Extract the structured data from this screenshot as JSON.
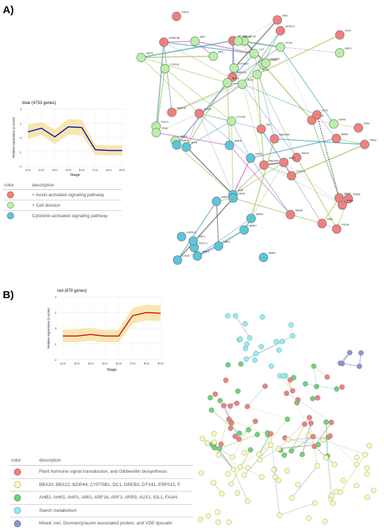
{
  "panels": [
    {
      "label": "A)",
      "chart_title": "blue (4733 genes)",
      "legend": {
        "headers": [
          "color",
          "description"
        ],
        "items": [
          {
            "color": "#ef8080",
            "text": "+ Auxin-activated signaling pathway"
          },
          {
            "color": "#b9f0a8",
            "text": "+ Cell division"
          },
          {
            "color": "#5bc6d8",
            "text": "Cytokinin-activated signaling pathway"
          }
        ]
      }
    },
    {
      "label": "B)",
      "chart_title": "red (878 genes)",
      "legend": {
        "headers": [
          "color",
          "description"
        ],
        "items": [
          {
            "color": "#ef8080",
            "text": "Plant hormone signal transduction, and Gibberellin biosynthesis"
          },
          {
            "color": "#fbfbb4",
            "text": "BBX20, BBX22, BZIP44, CYP75B1, DC1, DREB3, DTX41, ERF015, F"
          },
          {
            "color": "#6fd27a",
            "text": "AHB2, AHK5, AHP1, AMI1, ARF16, ARF3, ARR9, AUX1, EIL1, FAAH,"
          },
          {
            "color": "#8ef0f0",
            "text": "Starch metabolism"
          },
          {
            "color": "#8f94d6",
            "text": "Mixed, incl. Dormancy/auxin associated protein, and VDE lipocalin"
          }
        ]
      }
    }
  ],
  "chart_data": [
    {
      "type": "line",
      "title": "blue (4733 genes)",
      "xlabel": "Stage",
      "ylabel": "Relative expression (z-score)",
      "categories": [
        "1cm",
        "2cm",
        "3cm",
        "4cm",
        "5cm",
        "7cm",
        "8cm",
        "9cm"
      ],
      "series": [
        {
          "values": [
            0.4,
            0.65,
            0.05,
            0.75,
            0.7,
            -0.85,
            -0.9,
            -0.9
          ]
        }
      ],
      "band_upper": [
        0.9,
        1.1,
        0.55,
        1.3,
        1.25,
        -0.5,
        -0.55,
        -0.55
      ],
      "band_lower": [
        -0.1,
        0.2,
        -0.45,
        0.2,
        0.15,
        -1.2,
        -1.25,
        -1.25
      ],
      "ylim": [
        -2,
        2
      ],
      "yticks": [
        -2,
        -1,
        0,
        1,
        2
      ],
      "line_color": "#0b0bb0",
      "band_color": "#f6e2a3"
    },
    {
      "type": "line",
      "title": "red (878 genes)",
      "xlabel": "Stage",
      "ylabel": "Relative expression (z-score)",
      "categories": [
        "1cm",
        "2cm",
        "3cm",
        "4cm",
        "5cm",
        "7cm",
        "8cm",
        "9cm"
      ],
      "series": [
        {
          "values": [
            -0.5,
            -0.5,
            -0.4,
            -0.5,
            -0.5,
            0.8,
            1.0,
            0.95
          ]
        }
      ],
      "band_upper": [
        -0.1,
        -0.05,
        0.0,
        -0.1,
        -0.1,
        1.3,
        1.5,
        1.45
      ],
      "band_lower": [
        -0.9,
        -0.9,
        -0.8,
        -0.9,
        -0.9,
        0.3,
        0.5,
        0.45
      ],
      "ylim": [
        -2,
        2
      ],
      "yticks": [
        -2,
        -1,
        0,
        1,
        2
      ],
      "line_color": "#cc1010",
      "band_color": "#f6e2a3"
    }
  ],
  "network_a": {
    "labels": [
      "ZEU1",
      "CHMP1B",
      "WDX33",
      "POLH",
      "MYB88",
      "FMO2",
      "ZW1",
      "RFC4",
      "ACRX-2",
      "TPX2",
      "GSO1",
      "BAM1",
      "CYCD3",
      "CLV1",
      "BUB1",
      "TFCD",
      "MAD1",
      "NF-YA2",
      "CLF",
      "WDR76",
      "PRL",
      "TPX2",
      "ACO-2",
      "SPK6",
      "CYCB2",
      "PUB3",
      "NAC096",
      "IAA12",
      "NAC030",
      "ARF5",
      "GRF1",
      "ARR2",
      "CYCD4",
      "CYCB3",
      "ANT",
      "DMT1",
      "IAA16",
      "ARR9",
      "GRF5",
      "MRS1",
      "ARR5",
      "IAA13",
      "ARF4",
      "WRKY",
      "AHP1",
      "GRF2",
      "DOF",
      "LOG6",
      "DRP1",
      "OKF5",
      "GATA22",
      "TRN2",
      "PID",
      "PIN6",
      "PILS6",
      "CRF4",
      "IPT4",
      "AHK3",
      "AMI1",
      "TAR2",
      "PLT2",
      "YUC10"
    ],
    "node_colors": [
      "#b9f0a8",
      "#ef8080",
      "#ef8080",
      "#b9f0a8",
      "#b9f0a8",
      "#ef8080",
      "#ef8080",
      "#b9f0a8",
      "#ef8080",
      "#b9f0a8",
      "#ef8080",
      "#ef8080",
      "#b9f0a8",
      "#ef8080",
      "#b9f0a8",
      "#b9f0a8",
      "#b9f0a8",
      "#ef8080",
      "#b9f0a8",
      "#ef8080",
      "#b9f0a8",
      "#b9f0a8",
      "#5bc6d8",
      "#b9f0a8",
      "#b9f0a8",
      "#ef8080",
      "#ef8080",
      "#ef8080",
      "#ef8080",
      "#ef8080",
      "#b9f0a8",
      "#5bc6d8",
      "#b9f0a8",
      "#b9f0a8",
      "#b9f0a8",
      "#5bc6d8",
      "#ef8080",
      "#5bc6d8",
      "#b9f0a8",
      "#5bc6d8",
      "#5bc6d8",
      "#ef8080",
      "#ef8080",
      "#5bc6d8",
      "#5bc6d8",
      "#b9f0a8",
      "#5bc6d8",
      "#5bc6d8",
      "#5bc6d8",
      "#5bc6d8",
      "#5bc6d8",
      "#ef8080",
      "#ef8080",
      "#ef8080",
      "#ef8080",
      "#5bc6d8",
      "#5bc6d8",
      "#5bc6d8",
      "#ef8080",
      "#ef8080",
      "#ef8080",
      "#ef8080"
    ]
  },
  "network_b": {
    "node_colors": [
      "#8ef0f0",
      "#6fd27a",
      "#ef8080",
      "#fbfbb4",
      "#8f94d6"
    ]
  }
}
